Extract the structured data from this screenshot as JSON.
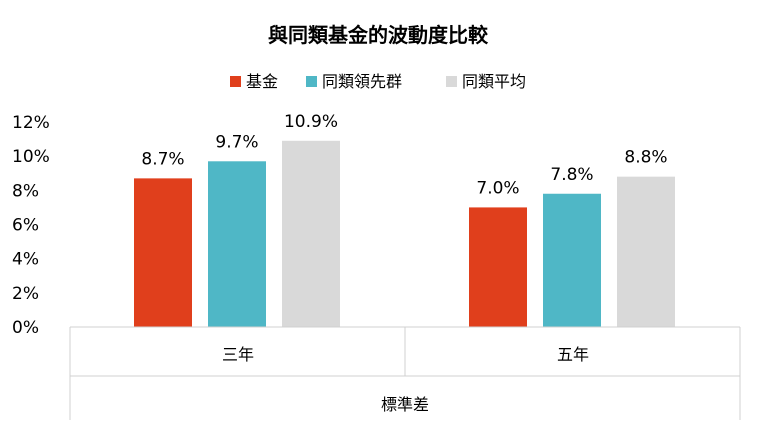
{
  "chart_data": {
    "type": "bar",
    "title": "與同類基金的波動度比較",
    "categories": [
      "三年",
      "五年"
    ],
    "group_label": "標準差",
    "series": [
      {
        "name": "基金",
        "values": [
          8.7,
          7.0
        ],
        "labels": [
          "8.7%",
          "7.0%"
        ],
        "color": "#E03F1C"
      },
      {
        "name": "同類領先群",
        "values": [
          9.7,
          7.8
        ],
        "labels": [
          "9.7%",
          "7.8%"
        ],
        "color": "#4FB7C6"
      },
      {
        "name": "同類平均",
        "values": [
          10.9,
          8.8
        ],
        "labels": [
          "10.9%",
          "8.8%"
        ],
        "color": "#D9D9D9"
      }
    ],
    "y_ticks": [
      "0%",
      "2%",
      "4%",
      "6%",
      "8%",
      "10%",
      "12%"
    ],
    "ylim": [
      0,
      12
    ],
    "grid": false,
    "legend_position": "top"
  }
}
